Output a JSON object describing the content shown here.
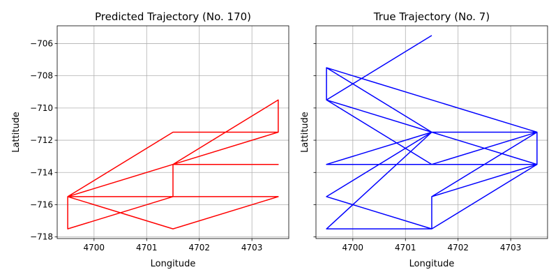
{
  "chart_data": [
    {
      "type": "line",
      "title": "Predicted Trajectory (No. 170)",
      "xlabel": "Longitude",
      "ylabel": "Lattitude",
      "xlim": [
        4699.3,
        4703.7
      ],
      "ylim": [
        -718.1,
        -704.9
      ],
      "xticks": [
        4700,
        4701,
        4702,
        4703
      ],
      "yticks": [
        -718,
        -716,
        -714,
        -712,
        -710,
        -708,
        -706
      ],
      "xtick_labels": [
        "4700",
        "4701",
        "4702",
        "4703"
      ],
      "ytick_labels": [
        "−718",
        "−716",
        "−714",
        "−712",
        "−710",
        "−708",
        "−706"
      ],
      "show_ytick_labels": true,
      "grid": true,
      "color": "#ff0000",
      "x": [
        4699.5,
        4701.5,
        4703.5,
        4703.5,
        4701.5,
        4699.5,
        4699.5,
        4701.5,
        4701.5,
        4703.5,
        4701.5,
        4703.5,
        4701.5,
        4699.5,
        4699.5,
        4701.5,
        4703.5,
        4703.5,
        4701.5,
        4699.5,
        4701.5
      ],
      "y": [
        -715.5,
        -711.5,
        -711.5,
        -709.5,
        -713.5,
        -715.5,
        -717.5,
        -715.5,
        -713.5,
        -711.5,
        -713.5,
        -713.5,
        -713.5,
        -715.5,
        -715.5,
        -715.5,
        -715.5,
        -715.5,
        -717.5,
        -715.5,
        -715.5
      ]
    },
    {
      "type": "line",
      "title": "True Trajectory (No. 7)",
      "xlabel": "Longitude",
      "ylabel": "Lattitude",
      "xlim": [
        4699.3,
        4703.7
      ],
      "ylim": [
        -718.1,
        -704.9
      ],
      "xticks": [
        4700,
        4701,
        4702,
        4703
      ],
      "yticks": [
        -718,
        -716,
        -714,
        -712,
        -710,
        -708,
        -706
      ],
      "xtick_labels": [
        "4700",
        "4701",
        "4702",
        "4703"
      ],
      "ytick_labels": [
        "−718",
        "−716",
        "−714",
        "−712",
        "−710",
        "−708",
        "−706"
      ],
      "show_ytick_labels": false,
      "grid": true,
      "color": "#0000ff",
      "x": [
        4701.5,
        4699.5,
        4699.5,
        4703.5,
        4701.5,
        4699.5,
        4701.5,
        4699.5,
        4701.5,
        4703.5,
        4703.5,
        4701.5,
        4699.5,
        4701.5,
        4703.5,
        4701.5,
        4701.5,
        4699.5,
        4701.5,
        4703.5,
        4701.5,
        4703.5,
        4701.5,
        4699.5,
        4701.5,
        4703.5,
        4701.5
      ],
      "y": [
        -705.5,
        -709.5,
        -707.5,
        -711.5,
        -711.5,
        -707.5,
        -711.5,
        -709.5,
        -713.5,
        -713.5,
        -711.5,
        -713.5,
        -713.5,
        -711.5,
        -711.5,
        -715.5,
        -717.5,
        -717.5,
        -711.5,
        -713.5,
        -715.5,
        -711.5,
        -711.5,
        -715.5,
        -717.5,
        -713.5,
        -715.5
      ]
    }
  ]
}
